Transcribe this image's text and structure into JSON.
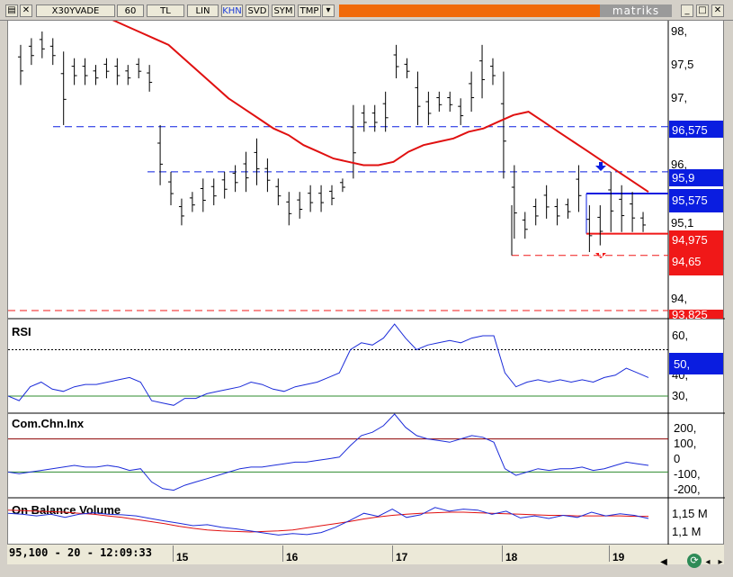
{
  "toolbar": {
    "symbol": "X30YVADE",
    "period": "60",
    "currency": "TL",
    "scale": "LIN",
    "buttons": [
      "KHN",
      "SVD",
      "SYM",
      "TMP"
    ],
    "brand": "matriks",
    "accent_color": "#f06a0a"
  },
  "price_axis": {
    "ticks": [
      "98,",
      "97,5",
      "97,",
      "96,",
      "95,1",
      "94,"
    ],
    "tags": [
      {
        "label": "96,575",
        "color": "#0a1de0"
      },
      {
        "label": "95,9",
        "color": "#0a1de0"
      },
      {
        "label": "95,575",
        "color": "#0a1de0"
      },
      {
        "label": "94,975",
        "color": "#f01818"
      },
      {
        "label": "94,65",
        "color": "#f01818"
      },
      {
        "label": "93,825",
        "color": "#f01818"
      }
    ]
  },
  "panels": {
    "rsi": {
      "title": "RSI",
      "ticks": [
        "60,",
        "50,",
        "40,",
        "30,"
      ],
      "tag": "50,"
    },
    "cci": {
      "title": "Com.Chn.Inx",
      "ticks": [
        "200,",
        "100,",
        "0",
        "-100,",
        "-200,"
      ]
    },
    "obv": {
      "title": "On Balance Volume",
      "ticks": [
        "1,15 M",
        "1,1 M"
      ]
    }
  },
  "status": {
    "cursor": "95,100 - 20 - 12:09:33"
  },
  "x_axis": {
    "labels": [
      "15",
      "16",
      "17",
      "18",
      "19"
    ]
  },
  "chart_data": {
    "type": "line",
    "title": "",
    "xlabel": "",
    "ylabel": "",
    "x_labels": [
      "15",
      "16",
      "17",
      "18",
      "19"
    ],
    "price_range": [
      93.8,
      98.2
    ],
    "ohlc_bars": [
      {
        "h": 97.8,
        "l": 97.2
      },
      {
        "h": 97.9,
        "l": 97.5
      },
      {
        "h": 98.0,
        "l": 97.6
      },
      {
        "h": 97.9,
        "l": 97.5
      },
      {
        "h": 97.7,
        "l": 96.6
      },
      {
        "h": 97.6,
        "l": 97.2
      },
      {
        "h": 97.6,
        "l": 97.2
      },
      {
        "h": 97.5,
        "l": 97.2
      },
      {
        "h": 97.6,
        "l": 97.3
      },
      {
        "h": 97.6,
        "l": 97.2
      },
      {
        "h": 97.5,
        "l": 97.2
      },
      {
        "h": 97.6,
        "l": 97.3
      },
      {
        "h": 97.5,
        "l": 97.1
      },
      {
        "h": 96.6,
        "l": 95.7
      },
      {
        "h": 95.9,
        "l": 95.4
      },
      {
        "h": 95.5,
        "l": 95.1
      },
      {
        "h": 95.6,
        "l": 95.3
      },
      {
        "h": 95.8,
        "l": 95.3
      },
      {
        "h": 95.8,
        "l": 95.4
      },
      {
        "h": 95.9,
        "l": 95.5
      },
      {
        "h": 96.0,
        "l": 95.6
      },
      {
        "h": 96.2,
        "l": 95.6
      },
      {
        "h": 96.4,
        "l": 95.7
      },
      {
        "h": 96.1,
        "l": 95.6
      },
      {
        "h": 95.8,
        "l": 95.4
      },
      {
        "h": 95.6,
        "l": 95.1
      },
      {
        "h": 95.6,
        "l": 95.2
      },
      {
        "h": 95.7,
        "l": 95.3
      },
      {
        "h": 95.7,
        "l": 95.3
      },
      {
        "h": 95.7,
        "l": 95.4
      },
      {
        "h": 95.8,
        "l": 95.6
      },
      {
        "h": 96.9,
        "l": 95.8
      },
      {
        "h": 96.9,
        "l": 96.5
      },
      {
        "h": 96.9,
        "l": 96.5
      },
      {
        "h": 97.1,
        "l": 96.5
      },
      {
        "h": 97.8,
        "l": 97.3
      },
      {
        "h": 97.6,
        "l": 97.3
      },
      {
        "h": 97.4,
        "l": 96.6
      },
      {
        "h": 97.1,
        "l": 96.6
      },
      {
        "h": 97.1,
        "l": 96.8
      },
      {
        "h": 97.1,
        "l": 96.8
      },
      {
        "h": 97.0,
        "l": 96.6
      },
      {
        "h": 97.4,
        "l": 96.8
      },
      {
        "h": 97.8,
        "l": 97.0
      },
      {
        "h": 97.6,
        "l": 97.2
      },
      {
        "h": 97.4,
        "l": 95.8
      },
      {
        "h": 96.0,
        "l": 94.9
      },
      {
        "h": 95.3,
        "l": 94.9
      },
      {
        "h": 95.5,
        "l": 95.1
      },
      {
        "h": 95.7,
        "l": 95.2
      },
      {
        "h": 95.5,
        "l": 95.1
      },
      {
        "h": 95.5,
        "l": 95.2
      },
      {
        "h": 96.0,
        "l": 95.3
      },
      {
        "h": 95.4,
        "l": 94.7
      },
      {
        "h": 95.4,
        "l": 94.8
      },
      {
        "h": 95.9,
        "l": 95.0
      },
      {
        "h": 95.7,
        "l": 95.0
      },
      {
        "h": 95.6,
        "l": 95.0
      },
      {
        "h": 95.3,
        "l": 95.0
      }
    ],
    "series": [
      {
        "values": [
          98.3,
          98.2,
          98.1,
          98.0,
          97.9,
          97.8,
          97.6,
          97.4,
          97.2,
          97.0,
          96.85,
          96.7,
          96.55,
          96.45,
          96.3,
          96.2,
          96.1,
          96.05,
          96.0,
          96.0,
          96.05,
          96.2,
          96.3,
          96.35,
          96.4,
          96.5,
          96.55,
          96.65,
          96.75,
          96.8,
          96.65,
          96.5,
          96.35,
          96.2,
          96.05,
          95.9,
          95.75,
          95.6
        ],
        "color": "#e01010"
      }
    ],
    "levels": [
      96.575,
      95.9,
      95.575,
      94.975,
      94.65,
      93.825
    ],
    "rsi": {
      "values": [
        32,
        30,
        36,
        38,
        35,
        34,
        36,
        37,
        37,
        38,
        39,
        40,
        38,
        30,
        29,
        28,
        31,
        31,
        33,
        34,
        35,
        36,
        38,
        37,
        35,
        34,
        36,
        37,
        38,
        40,
        42,
        52,
        55,
        54,
        57,
        63,
        57,
        52,
        54,
        55,
        56,
        55,
        57,
        58,
        58,
        42,
        36,
        38,
        39,
        38,
        39,
        38,
        39,
        38,
        40,
        41,
        44,
        42,
        40
      ],
      "ylim": [
        25,
        65
      ],
      "level": 50
    },
    "cci": {
      "values": [
        -100,
        -110,
        -100,
        -90,
        -80,
        -70,
        -60,
        -70,
        -70,
        -60,
        -70,
        -90,
        -80,
        -160,
        -200,
        -210,
        -180,
        -160,
        -140,
        -120,
        -100,
        -80,
        -70,
        -70,
        -60,
        -50,
        -40,
        -40,
        -30,
        -20,
        -10,
        60,
        120,
        140,
        180,
        250,
        170,
        120,
        100,
        90,
        80,
        100,
        120,
        110,
        80,
        -80,
        -120,
        -100,
        -80,
        -90,
        -80,
        -80,
        -70,
        -90,
        -80,
        -60,
        -40,
        -50,
        -60
      ],
      "ylim": [
        -250,
        250
      ]
    },
    "obv": {
      "line": [
        1.142,
        1.14,
        1.137,
        1.14,
        1.134,
        1.14,
        1.143,
        1.14,
        1.139,
        1.137,
        1.132,
        1.127,
        1.123,
        1.118,
        1.12,
        1.115,
        1.112,
        1.108,
        1.104,
        1.1,
        1.103,
        1.101,
        1.105,
        1.115,
        1.128,
        1.142,
        1.136,
        1.15,
        1.134,
        1.139,
        1.153,
        1.146,
        1.15,
        1.148,
        1.14,
        1.146,
        1.133,
        1.137,
        1.132,
        1.138,
        1.134,
        1.144,
        1.137,
        1.141,
        1.138,
        1.132
      ],
      "sma": [
        1.148,
        1.147,
        1.146,
        1.145,
        1.144,
        1.142,
        1.14,
        1.137,
        1.134,
        1.13,
        1.126,
        1.122,
        1.117,
        1.113,
        1.11,
        1.108,
        1.107,
        1.106,
        1.107,
        1.108,
        1.11,
        1.114,
        1.118,
        1.122,
        1.126,
        1.131,
        1.135,
        1.138,
        1.14,
        1.142,
        1.143,
        1.144,
        1.144,
        1.143,
        1.142,
        1.141,
        1.14,
        1.139,
        1.138,
        1.138,
        1.137,
        1.137,
        1.137,
        1.137,
        1.136,
        1.136
      ],
      "ylim": [
        1.08,
        1.17
      ]
    }
  }
}
